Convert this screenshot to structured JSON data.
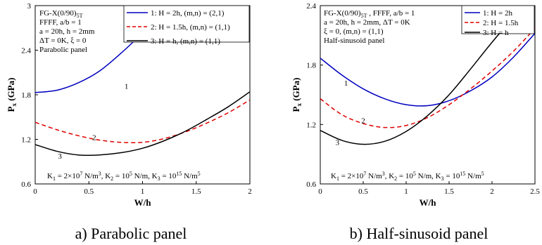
{
  "chart_data": [
    {
      "type": "line",
      "panel_id": "a",
      "caption": "a) Parabolic panel",
      "xlabel": "W/h",
      "ylabel": "Px (GPa)",
      "xlim": [
        0,
        2
      ],
      "ylim": [
        0.6,
        3
      ],
      "xticks": [
        "0",
        "0.5",
        "1",
        "1.5",
        "2"
      ],
      "yticks": [
        "0.6",
        "1.2",
        "1.8",
        "2.4",
        "3"
      ],
      "info": [
        "FG-X(0/90)5T",
        "FFFF, a/b = 1",
        "a = 20h, h = 2mm",
        "ΔT = 0K, ξ = 0",
        "Parabolic panel"
      ],
      "foundation": "K1 = 2×10^7 N/m^3, K2 = 10^5 N/m, K3 = 10^15 N/m^5",
      "legend": [
        "1: H = 2h, (m,n) = (2,1)",
        "2: H = 1.5h, (m,n) = (1,1)",
        "3: H = h, (m,n) = (1,1)"
      ],
      "curve_labels": [
        "1",
        "2",
        "3"
      ],
      "series": [
        {
          "id": "1",
          "color": "#0000c0",
          "dash": "solid",
          "x": [
            0,
            0.2,
            0.4,
            0.6,
            0.8,
            1.0,
            1.2,
            1.28
          ],
          "y": [
            1.83,
            1.86,
            1.96,
            2.12,
            2.36,
            2.63,
            2.91,
            3.0
          ]
        },
        {
          "id": "2",
          "color": "#e00000",
          "dash": "dashed",
          "x": [
            0,
            0.2,
            0.4,
            0.6,
            0.8,
            1.0,
            1.2,
            1.4,
            1.6,
            1.8,
            2.0
          ],
          "y": [
            1.43,
            1.33,
            1.25,
            1.19,
            1.16,
            1.16,
            1.21,
            1.3,
            1.42,
            1.56,
            1.73
          ]
        },
        {
          "id": "3",
          "color": "#000000",
          "dash": "solid",
          "x": [
            0,
            0.2,
            0.4,
            0.6,
            0.8,
            1.0,
            1.2,
            1.4,
            1.6,
            1.8,
            2.0
          ],
          "y": [
            1.13,
            1.04,
            0.99,
            0.99,
            1.02,
            1.08,
            1.18,
            1.31,
            1.47,
            1.64,
            1.84
          ]
        }
      ]
    },
    {
      "type": "line",
      "panel_id": "b",
      "caption": "b) Half-sinusoid panel",
      "xlabel": "W/h",
      "ylabel": "Px (GPa)",
      "xlim": [
        0,
        2.5
      ],
      "ylim": [
        0.6,
        2.4
      ],
      "xticks": [
        "0",
        "0.5",
        "1",
        "1.5",
        "2",
        "2.5"
      ],
      "yticks": [
        "0.6",
        "1.2",
        "1.8",
        "2.4"
      ],
      "info": [
        "FG-X(0/90)5T , FFFF, a/b = 1",
        "a = 20h, h = 2mm, ΔT = 0K",
        "ξ = 0, (m,n) = (1,1)",
        "Half-sinusoid panel"
      ],
      "foundation": "K1 = 2×10^7 N/m^3, K2 = 10^5 N/m, K3 = 10^15 N/m^5",
      "legend": [
        "1: H = 2h",
        "2: H = 1.5h",
        "3: H = h"
      ],
      "curve_labels": [
        "1",
        "2",
        "3"
      ],
      "series": [
        {
          "id": "1",
          "color": "#0000c0",
          "dash": "solid",
          "x": [
            0,
            0.25,
            0.5,
            0.75,
            1.0,
            1.25,
            1.5,
            1.75,
            2.0,
            2.25,
            2.5
          ],
          "y": [
            1.87,
            1.7,
            1.56,
            1.46,
            1.4,
            1.39,
            1.44,
            1.54,
            1.68,
            1.88,
            2.12
          ]
        },
        {
          "id": "2",
          "color": "#e00000",
          "dash": "dashed",
          "x": [
            0,
            0.25,
            0.5,
            0.75,
            1.0,
            1.25,
            1.5,
            1.75,
            2.0,
            2.25,
            2.5
          ],
          "y": [
            1.46,
            1.3,
            1.21,
            1.17,
            1.19,
            1.27,
            1.4,
            1.56,
            1.74,
            1.94,
            2.17
          ]
        },
        {
          "id": "3",
          "color": "#000000",
          "dash": "solid",
          "x": [
            0,
            0.25,
            0.5,
            0.75,
            1.0,
            1.25,
            1.5,
            1.75,
            2.0,
            2.25,
            2.4
          ],
          "y": [
            1.14,
            1.04,
            1.0,
            1.03,
            1.13,
            1.29,
            1.5,
            1.76,
            2.03,
            2.28,
            2.4
          ]
        }
      ]
    }
  ]
}
